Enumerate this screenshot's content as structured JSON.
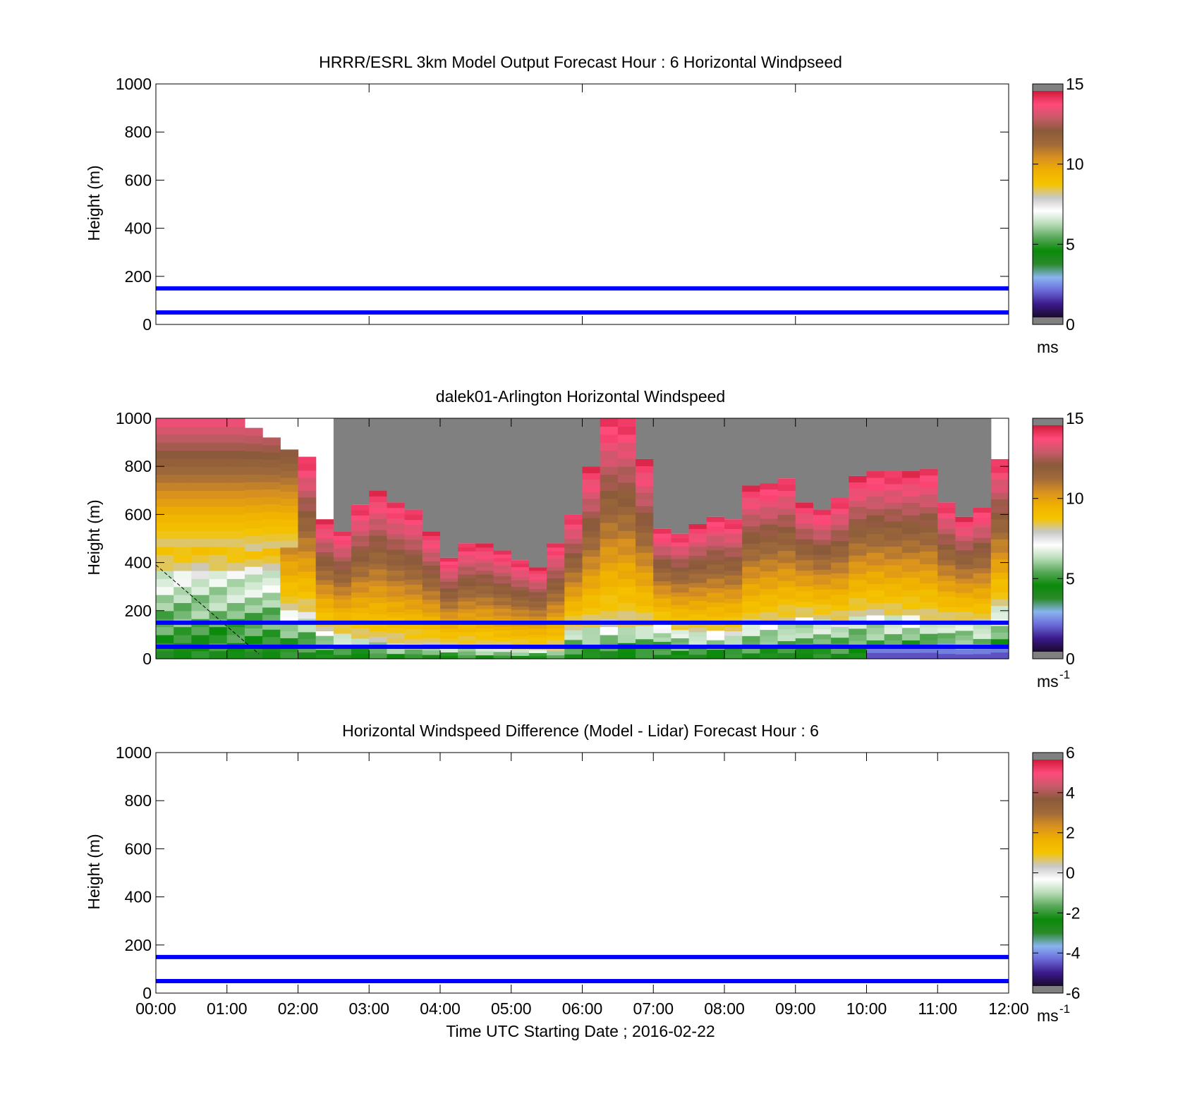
{
  "colormap_stops": [
    "#1a0a2e",
    "#3b1a8c",
    "#6a6ad8",
    "#8ab4f0",
    "#2a8a2a",
    "#0a8a0a",
    "#5aa85a",
    "#b8dcb8",
    "#ffffff",
    "#c8c8c8",
    "#f5c400",
    "#f0b000",
    "#d89020",
    "#a06a3a",
    "#8a5a3a",
    "#c85a6a",
    "#ff4a7a",
    "#d01a3a"
  ],
  "chart_data": [
    {
      "type": "heatmap",
      "title": "HRRR/ESRL 3km Model Output   Forecast Hour : 6 Horizontal Windpseed",
      "ylabel": "Height (m)",
      "ylim": [
        0,
        1000
      ],
      "yticks": [
        "0",
        "200",
        "400",
        "600",
        "800",
        "1000"
      ],
      "xlim": [
        "00:00",
        "12:00"
      ],
      "xtick_count": 5,
      "ref_lines": [
        150,
        50
      ],
      "colorbar": {
        "range": [
          0,
          15
        ],
        "ticks": [
          "0",
          "5",
          "10",
          "15"
        ],
        "unit": "ms",
        "sup": ""
      }
    },
    {
      "type": "heatmap",
      "title": "dalek01-Arlington  Horizontal Windspeed",
      "ylabel": "Height (m)",
      "ylim": [
        0,
        1000
      ],
      "yticks": [
        "0",
        "200",
        "400",
        "600",
        "800",
        "1000"
      ],
      "xlim": [
        "00:00",
        "12:00"
      ],
      "xtick_count": 13,
      "ref_lines": [
        150,
        50
      ],
      "colorbar": {
        "range": [
          0,
          15
        ],
        "ticks": [
          "0",
          "5",
          "10",
          "15"
        ],
        "unit": "ms",
        "sup": "-1"
      },
      "columns_approx": {
        "x_hours": [
          0.0,
          0.25,
          0.5,
          0.75,
          1.0,
          1.25,
          1.5,
          1.75,
          2.0,
          2.25,
          2.5,
          2.75,
          3.0,
          3.25,
          3.5,
          3.75,
          4.0,
          4.25,
          4.5,
          4.75,
          5.0,
          5.25,
          5.5,
          5.75,
          6.0,
          6.25,
          6.5,
          6.75,
          7.0,
          7.25,
          7.5,
          7.75,
          8.0,
          8.25,
          8.5,
          8.75,
          9.0,
          9.25,
          9.5,
          9.75,
          10.0,
          10.25,
          10.5,
          10.75,
          11.0,
          11.25,
          11.5,
          11.75
        ],
        "top_height_m": [
          1000,
          1000,
          1000,
          1000,
          1000,
          960,
          920,
          870,
          840,
          580,
          530,
          640,
          700,
          650,
          620,
          530,
          420,
          480,
          480,
          450,
          410,
          380,
          480,
          600,
          800,
          1000,
          1000,
          830,
          540,
          520,
          560,
          590,
          580,
          720,
          730,
          750,
          650,
          620,
          670,
          760,
          780,
          780,
          780,
          790,
          650,
          590,
          630,
          830
        ],
        "low_wind_top_m": [
          380,
          380,
          380,
          380,
          380,
          380,
          380,
          200,
          200,
          120,
          100,
          90,
          80,
          70,
          60,
          60,
          50,
          50,
          50,
          40,
          40,
          40,
          40,
          130,
          140,
          150,
          150,
          140,
          140,
          120,
          110,
          110,
          110,
          140,
          150,
          160,
          180,
          170,
          160,
          190,
          190,
          180,
          180,
          170,
          160,
          160,
          150,
          210
        ]
      }
    },
    {
      "type": "heatmap",
      "title": "Horizontal Windspeed Difference (Model - Lidar) Forecast Hour : 6",
      "ylabel": "Height (m)",
      "xlabel": "Time UTC  Starting Date ; 2016-02-22",
      "ylim": [
        0,
        1000
      ],
      "yticks": [
        "0",
        "200",
        "400",
        "600",
        "800",
        "1000"
      ],
      "xticks": [
        "00:00",
        "01:00",
        "02:00",
        "03:00",
        "04:00",
        "05:00",
        "06:00",
        "07:00",
        "08:00",
        "09:00",
        "10:00",
        "11:00",
        "12:00"
      ],
      "ref_lines": [
        150,
        50
      ],
      "colorbar": {
        "range": [
          -6,
          6
        ],
        "ticks": [
          "-6",
          "-4",
          "-2",
          "0",
          "2",
          "4",
          "6"
        ],
        "unit": "ms",
        "sup": "-1"
      }
    }
  ]
}
